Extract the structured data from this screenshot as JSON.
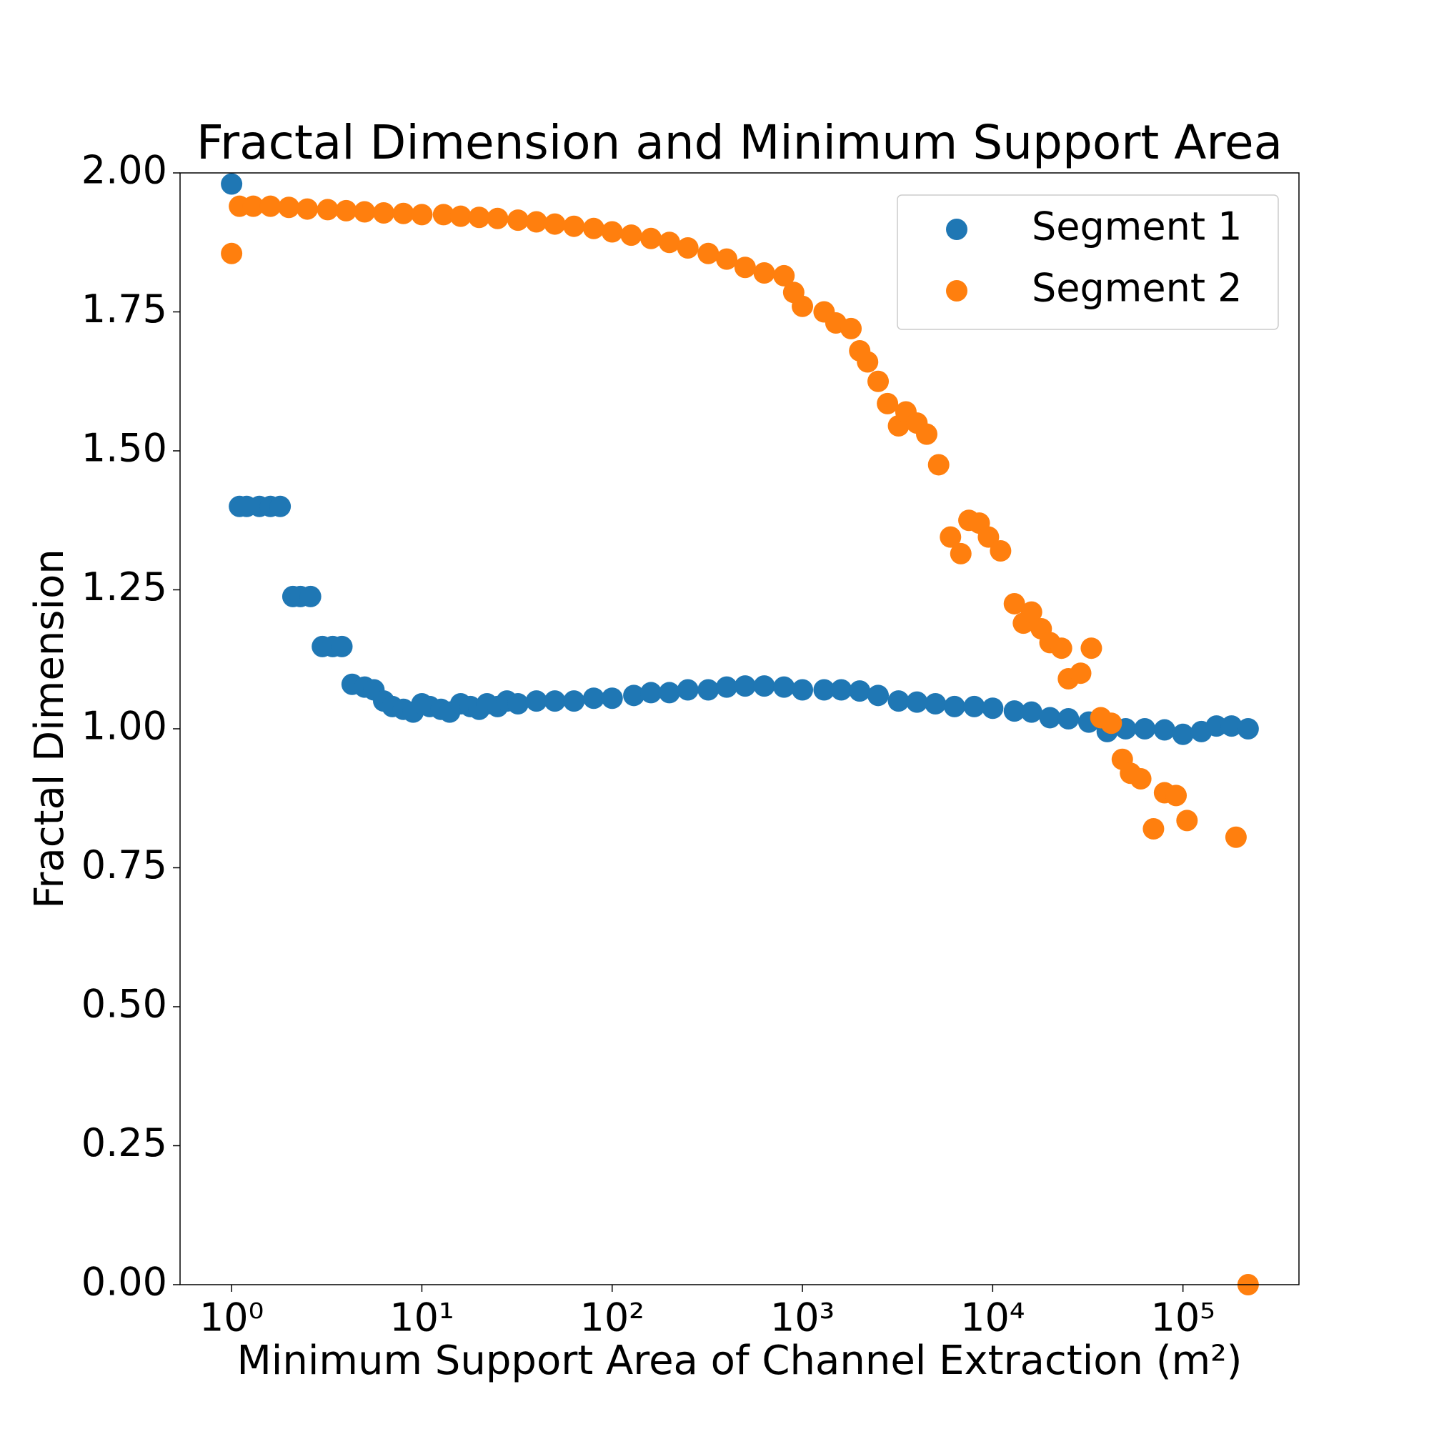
{
  "chart_data": {
    "type": "scatter",
    "title": "Fractal Dimension and Minimum Support Area",
    "x_label": "Minimum Support Area of Channel Extraction (m²)",
    "y_label": "Fractal Dimension",
    "log_x": true,
    "xlim": [
      0.536,
      407000
    ],
    "xticks": [
      {
        "value": 1,
        "label": "10⁰"
      },
      {
        "value": 10,
        "label": "10¹"
      },
      {
        "value": 100,
        "label": "10²"
      },
      {
        "value": 1000,
        "label": "10³"
      },
      {
        "value": 10000,
        "label": "10⁴"
      },
      {
        "value": 100000,
        "label": "10⁵"
      }
    ],
    "ylim": [
      0,
      2
    ],
    "yticks": [
      {
        "value": 0,
        "label": "0.00"
      },
      {
        "value": 0.25,
        "label": "0.25"
      },
      {
        "value": 0.5,
        "label": "0.50"
      },
      {
        "value": 0.75,
        "label": "0.75"
      },
      {
        "value": 1,
        "label": "1.00"
      },
      {
        "value": 1.25,
        "label": "1.25"
      },
      {
        "value": 1.5,
        "label": "1.50"
      },
      {
        "value": 1.75,
        "label": "1.75"
      },
      {
        "value": 2,
        "label": "2.00"
      }
    ],
    "legend": "upper right",
    "series": [
      {
        "name": "Segment 1",
        "color": "#1f77b4",
        "x": [
          1,
          1.1,
          1.2,
          1.4,
          1.6,
          1.8,
          2.1,
          2.3,
          2.6,
          3.0,
          3.4,
          3.8,
          4.3,
          5,
          5.6,
          6.3,
          7,
          8,
          9,
          10,
          11,
          12.6,
          14,
          16,
          18,
          20,
          22,
          25,
          28,
          32,
          40,
          50,
          63,
          80,
          100,
          130,
          160,
          200,
          250,
          320,
          400,
          500,
          630,
          800,
          1000,
          1300,
          1600,
          2000,
          2500,
          3200,
          4000,
          5000,
          6300,
          8000,
          10000,
          13000,
          16000,
          20000,
          25000,
          32000,
          40000,
          50000,
          63000,
          80000,
          100000,
          125000,
          150000,
          180000,
          220000
        ],
        "values": [
          1.98,
          1.4,
          1.4,
          1.4,
          1.4,
          1.4,
          1.238,
          1.238,
          1.238,
          1.148,
          1.148,
          1.148,
          1.08,
          1.075,
          1.07,
          1.05,
          1.04,
          1.035,
          1.03,
          1.045,
          1.04,
          1.035,
          1.03,
          1.045,
          1.04,
          1.035,
          1.045,
          1.04,
          1.05,
          1.045,
          1.05,
          1.05,
          1.05,
          1.055,
          1.055,
          1.06,
          1.065,
          1.065,
          1.07,
          1.07,
          1.075,
          1.077,
          1.077,
          1.075,
          1.07,
          1.07,
          1.07,
          1.068,
          1.06,
          1.05,
          1.048,
          1.045,
          1.04,
          1.04,
          1.037,
          1.032,
          1.03,
          1.02,
          1.018,
          1.012,
          0.995,
          1.0,
          1.0,
          0.998,
          0.99,
          0.995,
          1.005,
          1.005,
          1.0
        ]
      },
      {
        "name": "Segment 2",
        "color": "#ff7f0e",
        "x": [
          1,
          1.1,
          1.3,
          1.6,
          2,
          2.5,
          3.2,
          4,
          5,
          6.3,
          8,
          10,
          13,
          16,
          20,
          25,
          32,
          40,
          50,
          63,
          80,
          100,
          126,
          160,
          200,
          250,
          320,
          400,
          500,
          630,
          800,
          900,
          1000,
          1300,
          1500,
          1800,
          2000,
          2200,
          2500,
          2800,
          3200,
          3500,
          4000,
          4500,
          5200,
          6000,
          6800,
          7500,
          8500,
          9500,
          11000,
          13000,
          14500,
          16000,
          18000,
          20000,
          23000,
          25000,
          29000,
          33000,
          37000,
          42000,
          48000,
          53000,
          60000,
          70000,
          80000,
          92000,
          105000,
          190000,
          220000
        ],
        "values": [
          1.855,
          1.94,
          1.94,
          1.94,
          1.938,
          1.935,
          1.934,
          1.932,
          1.93,
          1.928,
          1.927,
          1.925,
          1.925,
          1.922,
          1.92,
          1.918,
          1.915,
          1.912,
          1.908,
          1.904,
          1.9,
          1.894,
          1.888,
          1.882,
          1.875,
          1.865,
          1.855,
          1.845,
          1.83,
          1.82,
          1.815,
          1.785,
          1.76,
          1.75,
          1.73,
          1.72,
          1.68,
          1.66,
          1.625,
          1.585,
          1.545,
          1.57,
          1.55,
          1.53,
          1.475,
          1.345,
          1.315,
          1.375,
          1.37,
          1.345,
          1.32,
          1.225,
          1.19,
          1.21,
          1.18,
          1.155,
          1.145,
          1.09,
          1.1,
          1.145,
          1.02,
          1.01,
          0.945,
          0.92,
          0.91,
          0.82,
          0.885,
          0.88,
          0.835,
          0.805,
          0.0
        ]
      }
    ]
  }
}
